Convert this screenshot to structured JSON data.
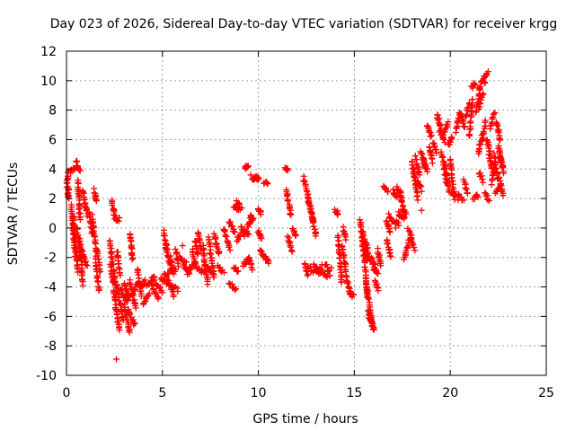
{
  "chart_data": {
    "type": "scatter",
    "title": "Day 023 of 2026, Sidereal Day-to-day VTEC variation (SDTVAR) for receiver krgg",
    "xlabel": "GPS time / hours",
    "ylabel": "SDTVAR / TECUs",
    "xlim": [
      0,
      25
    ],
    "ylim": [
      -10,
      12
    ],
    "xticks": [
      0,
      5,
      10,
      15,
      20,
      25
    ],
    "yticks": [
      -10,
      -8,
      -6,
      -4,
      -2,
      0,
      2,
      4,
      6,
      8,
      10,
      12
    ],
    "grid": true,
    "marker": "+",
    "color": "#ff0000",
    "segments": [
      [
        0.0,
        2.8,
        0.1,
        3.8
      ],
      [
        0.1,
        2.8,
        0.1,
        2.0
      ],
      [
        0.2,
        3.8,
        0.5,
        4.2
      ],
      [
        0.5,
        4.6,
        0.7,
        3.9
      ],
      [
        0.25,
        1.5,
        0.45,
        -1.8
      ],
      [
        0.35,
        0.8,
        0.6,
        -3.0
      ],
      [
        0.55,
        0.0,
        0.8,
        -2.6
      ],
      [
        0.7,
        -0.8,
        0.85,
        -3.8
      ],
      [
        0.8,
        -1.5,
        1.05,
        -2.6
      ],
      [
        0.6,
        3.2,
        0.7,
        0.5
      ],
      [
        0.85,
        2.6,
        1.1,
        0.9
      ],
      [
        1.2,
        1.0,
        1.35,
        -0.4
      ],
      [
        1.35,
        0.8,
        1.55,
        -1.8
      ],
      [
        1.45,
        2.6,
        1.55,
        1.8
      ],
      [
        1.5,
        -2.2,
        1.7,
        -4.2
      ],
      [
        1.6,
        -1.5,
        1.75,
        -3.0
      ],
      [
        2.35,
        1.8,
        2.5,
        1.0
      ],
      [
        2.45,
        0.8,
        2.7,
        0.5
      ],
      [
        2.25,
        -0.8,
        2.6,
        -4.5
      ],
      [
        2.3,
        -2.5,
        2.45,
        -3.8
      ],
      [
        2.45,
        -4.2,
        2.75,
        -7.0
      ],
      [
        2.65,
        -1.5,
        2.8,
        -3.2
      ],
      [
        2.65,
        -3.8,
        2.95,
        -6.3
      ],
      [
        2.85,
        -4.2,
        3.2,
        -5.0
      ],
      [
        3.0,
        -5.2,
        3.3,
        -7.1
      ],
      [
        3.2,
        -5.5,
        3.55,
        -6.6
      ],
      [
        3.0,
        -3.8,
        3.3,
        -4.8
      ],
      [
        3.3,
        -3.5,
        3.6,
        -5.5
      ],
      [
        3.3,
        -0.3,
        3.45,
        -2.2
      ],
      [
        3.45,
        -4.4,
        3.7,
        -3.8
      ],
      [
        3.7,
        -2.8,
        3.9,
        -4.6
      ],
      [
        3.9,
        -4.0,
        4.1,
        -3.6
      ],
      [
        4.0,
        -5.2,
        4.3,
        -4.4
      ],
      [
        4.2,
        -4.0,
        4.6,
        -3.2
      ],
      [
        4.4,
        -3.8,
        4.8,
        -4.8
      ],
      [
        4.6,
        -3.6,
        5.0,
        -4.4
      ],
      [
        4.9,
        -3.4,
        5.3,
        -3.8
      ],
      [
        5.1,
        -3.0,
        5.6,
        -4.6
      ],
      [
        5.35,
        -3.8,
        5.8,
        -4.2
      ],
      [
        5.3,
        -3.0,
        5.7,
        -2.8
      ],
      [
        5.05,
        -0.2,
        5.25,
        -1.4
      ],
      [
        5.15,
        -1.2,
        5.45,
        -2.8
      ],
      [
        5.4,
        -2.0,
        5.6,
        -3.0
      ],
      [
        5.7,
        -1.5,
        5.85,
        -2.5
      ],
      [
        5.85,
        -2.0,
        6.25,
        -2.3
      ],
      [
        6.1,
        -2.5,
        6.4,
        -3.2
      ],
      [
        6.3,
        -2.8,
        6.6,
        -2.6
      ],
      [
        6.55,
        -1.5,
        6.75,
        -2.6
      ],
      [
        6.7,
        -0.8,
        6.85,
        -1.8
      ],
      [
        6.85,
        -0.2,
        7.0,
        -1.5
      ],
      [
        6.8,
        -2.8,
        7.2,
        -3.0
      ],
      [
        7.2,
        -2.6,
        7.6,
        -3.0
      ],
      [
        7.1,
        -1.2,
        7.35,
        -3.8
      ],
      [
        7.4,
        -0.6,
        7.7,
        -3.4
      ],
      [
        7.7,
        -0.4,
        7.95,
        -1.8
      ],
      [
        7.9,
        -2.6,
        8.2,
        -3.0
      ],
      [
        8.2,
        0.0,
        8.5,
        -1.4
      ],
      [
        8.5,
        0.5,
        8.75,
        -0.4
      ],
      [
        8.7,
        1.5,
        8.95,
        1.2
      ],
      [
        8.85,
        1.8,
        9.1,
        1.3
      ],
      [
        8.5,
        -3.8,
        8.85,
        -4.2
      ],
      [
        8.7,
        -2.6,
        8.95,
        -3.0
      ],
      [
        8.9,
        -0.8,
        9.1,
        -0.4
      ],
      [
        9.1,
        0.2,
        9.3,
        -0.6
      ],
      [
        9.25,
        -0.2,
        9.5,
        -0.4
      ],
      [
        9.3,
        4.1,
        9.45,
        4.2
      ],
      [
        9.45,
        0.1,
        9.65,
        0.7
      ],
      [
        9.55,
        0.8,
        9.75,
        0.6
      ],
      [
        9.2,
        -2.6,
        9.5,
        -2.0
      ],
      [
        9.5,
        -2.0,
        9.7,
        -2.8
      ],
      [
        9.7,
        3.3,
        9.85,
        3.4
      ],
      [
        9.9,
        3.4,
        10.0,
        3.3
      ],
      [
        10.0,
        -0.2,
        10.15,
        -0.8
      ],
      [
        10.1,
        -1.5,
        10.3,
        -2.0
      ],
      [
        10.3,
        3.1,
        10.5,
        3.0
      ],
      [
        10.35,
        -2.0,
        10.55,
        -2.4
      ],
      [
        10.0,
        1.2,
        10.15,
        1.0
      ],
      [
        11.4,
        4.1,
        11.55,
        4.0
      ],
      [
        11.45,
        2.6,
        11.7,
        0.8
      ],
      [
        11.55,
        -0.6,
        11.75,
        -1.6
      ],
      [
        11.8,
        0.0,
        11.95,
        -0.6
      ],
      [
        12.35,
        3.4,
        12.9,
        0.4
      ],
      [
        12.6,
        2.0,
        13.0,
        -0.6
      ],
      [
        12.4,
        -2.5,
        12.6,
        -3.2
      ],
      [
        12.6,
        -2.6,
        12.9,
        -3.0
      ],
      [
        12.9,
        -2.5,
        13.2,
        -3.2
      ],
      [
        13.2,
        -2.8,
        13.55,
        -3.4
      ],
      [
        13.5,
        -2.4,
        13.75,
        -3.2
      ],
      [
        13.0,
        -3.0,
        13.3,
        -2.6
      ],
      [
        14.0,
        1.2,
        14.15,
        1.0
      ],
      [
        14.15,
        -0.6,
        14.35,
        -3.8
      ],
      [
        14.35,
        -1.2,
        14.55,
        -2.6
      ],
      [
        14.5,
        -2.8,
        14.75,
        -4.2
      ],
      [
        14.7,
        -4.4,
        14.95,
        -4.6
      ],
      [
        14.4,
        0.0,
        14.55,
        -0.8
      ],
      [
        15.3,
        0.6,
        15.5,
        -1.8
      ],
      [
        15.5,
        -1.8,
        15.7,
        -4.8
      ],
      [
        15.6,
        -3.6,
        15.9,
        -6.4
      ],
      [
        15.7,
        -5.6,
        16.0,
        -6.9
      ],
      [
        15.75,
        -6.0,
        16.05,
        -6.8
      ],
      [
        15.45,
        -0.2,
        15.65,
        -2.2
      ],
      [
        15.6,
        -1.0,
        15.8,
        -2.2
      ],
      [
        15.9,
        -2.0,
        16.05,
        -3.0
      ],
      [
        16.0,
        -2.4,
        16.2,
        -3.2
      ],
      [
        16.1,
        -3.6,
        16.25,
        -4.2
      ],
      [
        16.2,
        -1.5,
        16.4,
        -2.6
      ],
      [
        16.5,
        2.8,
        16.75,
        2.5
      ],
      [
        16.65,
        0.5,
        16.85,
        -0.2
      ],
      [
        16.8,
        0.9,
        17.0,
        0.4
      ],
      [
        16.7,
        -0.8,
        16.9,
        -2.0
      ],
      [
        17.0,
        2.5,
        17.2,
        2.0
      ],
      [
        17.1,
        0.5,
        17.3,
        0.2
      ],
      [
        17.2,
        2.8,
        17.4,
        2.2
      ],
      [
        17.3,
        1.0,
        17.5,
        0.6
      ],
      [
        17.4,
        2.5,
        17.6,
        0.6
      ],
      [
        17.5,
        1.2,
        17.7,
        1.0
      ],
      [
        17.6,
        -2.2,
        17.85,
        -0.8
      ],
      [
        17.8,
        0.0,
        18.0,
        -0.6
      ],
      [
        17.9,
        -0.6,
        18.15,
        -1.4
      ],
      [
        18.0,
        4.5,
        18.2,
        3.0
      ],
      [
        18.1,
        3.8,
        18.3,
        2.0
      ],
      [
        18.2,
        4.8,
        18.4,
        3.6
      ],
      [
        18.3,
        3.2,
        18.5,
        2.6
      ],
      [
        18.45,
        5.2,
        18.7,
        4.2
      ],
      [
        18.6,
        4.6,
        18.8,
        3.8
      ],
      [
        18.8,
        7.0,
        19.0,
        6.2
      ],
      [
        18.9,
        5.5,
        19.1,
        4.5
      ],
      [
        19.1,
        5.8,
        19.3,
        5.2
      ],
      [
        19.3,
        7.8,
        19.5,
        6.8
      ],
      [
        19.45,
        6.6,
        19.7,
        5.8
      ],
      [
        19.55,
        5.2,
        19.8,
        3.0
      ],
      [
        19.75,
        4.2,
        19.95,
        2.4
      ],
      [
        19.65,
        6.4,
        19.9,
        7.2
      ],
      [
        19.9,
        5.6,
        20.1,
        6.2
      ],
      [
        20.0,
        4.6,
        20.2,
        2.0
      ],
      [
        20.1,
        2.4,
        20.4,
        2.0
      ],
      [
        20.3,
        6.6,
        20.5,
        7.8
      ],
      [
        20.4,
        2.2,
        20.7,
        1.8
      ],
      [
        20.55,
        7.8,
        20.75,
        6.8
      ],
      [
        20.7,
        3.2,
        20.9,
        2.4
      ],
      [
        20.8,
        7.6,
        21.0,
        8.4
      ],
      [
        21.0,
        6.2,
        21.15,
        8.8
      ],
      [
        21.1,
        9.5,
        21.3,
        9.8
      ],
      [
        21.2,
        2.0,
        21.45,
        2.2
      ],
      [
        21.35,
        7.8,
        21.55,
        9.6
      ],
      [
        21.5,
        8.2,
        21.7,
        9.0
      ],
      [
        21.6,
        10.0,
        21.8,
        9.8
      ],
      [
        21.75,
        10.2,
        21.95,
        10.6
      ],
      [
        21.45,
        5.0,
        21.65,
        6.2
      ],
      [
        21.65,
        6.0,
        21.85,
        7.2
      ],
      [
        21.9,
        6.0,
        22.1,
        5.0
      ],
      [
        21.5,
        3.8,
        21.7,
        3.2
      ],
      [
        21.8,
        2.4,
        22.0,
        1.9
      ],
      [
        22.0,
        5.0,
        22.15,
        4.0
      ],
      [
        22.1,
        6.8,
        22.3,
        7.8
      ],
      [
        22.15,
        3.0,
        22.35,
        4.5
      ],
      [
        22.3,
        5.0,
        22.5,
        3.2
      ],
      [
        22.35,
        2.4,
        22.6,
        2.8
      ],
      [
        22.4,
        7.2,
        22.6,
        6.0
      ],
      [
        22.5,
        5.6,
        22.7,
        4.2
      ],
      [
        22.55,
        3.4,
        22.75,
        2.2
      ],
      [
        22.6,
        5.0,
        22.8,
        3.8
      ]
    ],
    "isolated_points": [
      [
        2.6,
        -8.9
      ],
      [
        0.05,
        2.3
      ],
      [
        9.6,
        3.6
      ],
      [
        11.5,
        2.2
      ],
      [
        14.95,
        -4.5
      ],
      [
        18.5,
        1.2
      ],
      [
        2.75,
        0.7
      ],
      [
        6.05,
        -1.2
      ],
      [
        13.8,
        -2.7
      ],
      [
        17.15,
        0.0
      ]
    ]
  }
}
